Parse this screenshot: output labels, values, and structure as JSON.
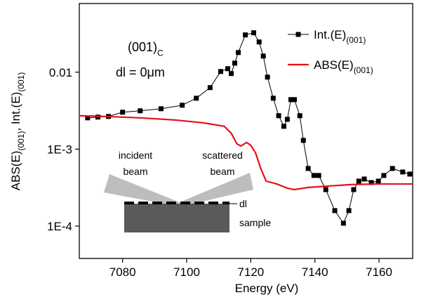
{
  "chart_data": {
    "type": "line",
    "xlabel": "Energy (eV)",
    "ylabel_parts": [
      "ABS(E)",
      "(001)",
      ", Int.(E)",
      "(001)"
    ],
    "xlim": [
      7066.5,
      7170.5
    ],
    "ylim": [
      3.8e-05,
      0.078
    ],
    "ylog": true,
    "xticks": [
      7080,
      7100,
      7120,
      7140,
      7160
    ],
    "yticks": [
      {
        "value": 0.0001,
        "label": "1E-4"
      },
      {
        "value": 0.001,
        "label": "1E-3"
      },
      0.01
    ],
    "legend": "upper right",
    "series": [
      {
        "name": "Int.(E)",
        "name_sub": "(001)",
        "color": "#000000",
        "marker": "square",
        "x": [
          7069.1,
          7072.3,
          7075.6,
          7080,
          7085.5,
          7092,
          7098.6,
          7103,
          7107.3,
          7110.6,
          7112.8,
          7113.9,
          7115,
          7116.1,
          7118.3,
          7120.9,
          7122.6,
          7123.9,
          7125.2,
          7127,
          7128.7,
          7130.3,
          7131.4,
          7132.5,
          7133.6,
          7135.3,
          7136.4,
          7137.9,
          7139.7,
          7141.2,
          7143.4,
          7146.2,
          7148.9,
          7150.6,
          7152.1,
          7153.7,
          7155.4,
          7157.6,
          7159.8,
          7161.5,
          7164.2,
          7167.4,
          7169.6
        ],
        "values": [
          0.00255,
          0.00261,
          0.00266,
          0.00302,
          0.00315,
          0.00335,
          0.00372,
          0.00459,
          0.0063,
          0.0102,
          0.0111,
          0.00959,
          0.0131,
          0.018,
          0.0305,
          0.0325,
          0.0247,
          0.0162,
          0.00863,
          0.00459,
          0.00272,
          0.00198,
          0.00244,
          0.0044,
          0.0044,
          0.00272,
          0.0013,
          0.000561,
          0.000455,
          0.000455,
          0.000298,
          0.000159,
          0.000109,
          0.000159,
          0.000298,
          0.000384,
          0.000409,
          0.000368,
          0.000384,
          0.000455,
          0.000561,
          0.000505,
          0.000474
        ]
      },
      {
        "name": "ABS(E)",
        "name_sub": "(001)",
        "color": "#e8101a",
        "marker": "none",
        "x": [
          7066.4,
          7074.5,
          7085.5,
          7096.4,
          7105.1,
          7111.7,
          7113.9,
          7115.7,
          7116.9,
          7118.7,
          7120,
          7121.5,
          7123.1,
          7124.8,
          7128.1,
          7131.4,
          7133.6,
          7137.9,
          7144.5,
          7151,
          7159.8,
          7170.3
        ],
        "values": [
          0.00272,
          0.00266,
          0.00255,
          0.00239,
          0.0022,
          0.00198,
          0.00161,
          0.00117,
          0.0011,
          0.00122,
          0.00112,
          0.000891,
          0.000561,
          0.000384,
          0.000353,
          0.000311,
          0.000298,
          0.000318,
          0.000332,
          0.000346,
          0.000353,
          0.000353
        ]
      }
    ],
    "annotations": {
      "orientation": {
        "text": "(001)",
        "sub": "C"
      },
      "thickness": "dl = 0μm",
      "incident": [
        "incident",
        "beam"
      ],
      "scattered": [
        "scattered",
        "beam"
      ],
      "layer": "dl",
      "sample": "sample"
    }
  }
}
